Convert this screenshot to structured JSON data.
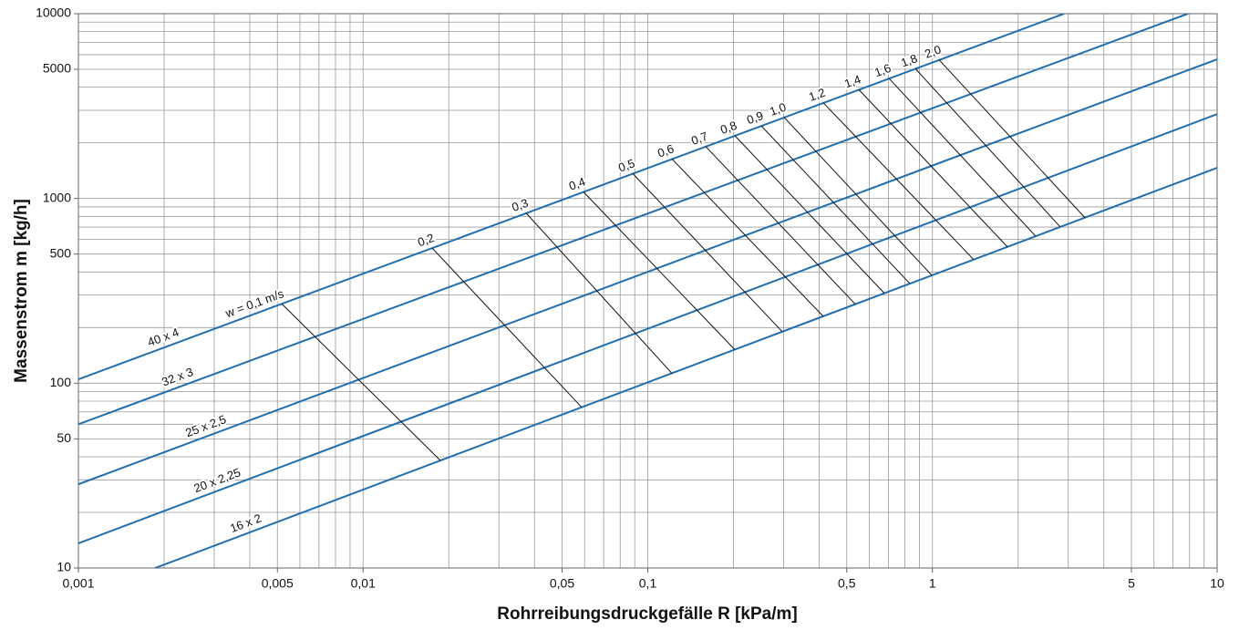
{
  "chart_data": {
    "type": "line",
    "x_label": "Rohrreibungsdruckgefälle R [kPa/m]",
    "y_label": "Massenstrom m [kg/h]",
    "log_x": true,
    "log_y": true,
    "grid": true,
    "xlim": [
      0.001,
      10
    ],
    "ylim": [
      10,
      10000
    ],
    "xticks": [
      {
        "value": 0.001,
        "label": "0,001"
      },
      {
        "value": 0.005,
        "label": "0,005"
      },
      {
        "value": 0.01,
        "label": "0,01"
      },
      {
        "value": 0.05,
        "label": "0,05"
      },
      {
        "value": 0.1,
        "label": "0,1"
      },
      {
        "value": 0.5,
        "label": "0,5"
      },
      1,
      5,
      10
    ],
    "yticks": [
      10,
      50,
      100,
      500,
      1000,
      5000,
      10000
    ],
    "xgrid": [
      0.001,
      0.002,
      0.003,
      0.004,
      0.005,
      0.006,
      0.007,
      0.008,
      0.009,
      0.01,
      0.02,
      0.03,
      0.04,
      0.05,
      0.06,
      0.07,
      0.08,
      0.09,
      0.1,
      0.2,
      0.3,
      0.4,
      0.5,
      0.6,
      0.7,
      0.8,
      0.9,
      1,
      2,
      3,
      4,
      5,
      6,
      7,
      8,
      9,
      10
    ],
    "ygrid": [
      10,
      20,
      30,
      40,
      50,
      60,
      70,
      80,
      90,
      100,
      200,
      300,
      400,
      500,
      600,
      700,
      800,
      900,
      1000,
      2000,
      3000,
      4000,
      5000,
      6000,
      7000,
      8000,
      9000,
      10000
    ],
    "series": [
      {
        "name": "40 x 4",
        "color": "#1f6fb2",
        "x": [
          0.001,
          2.9
        ],
        "values": [
          105,
          10000
        ]
      },
      {
        "name": "32 x 3",
        "color": "#1f6fb2",
        "x": [
          0.001,
          7.9
        ],
        "values": [
          60,
          10000
        ]
      },
      {
        "name": "25 x 2,5",
        "color": "#1f6fb2",
        "x": [
          0.001,
          10
        ],
        "values": [
          28.4,
          5660
        ]
      },
      {
        "name": "20 x 2,25",
        "color": "#1f6fb2",
        "x": [
          0.001,
          10
        ],
        "values": [
          13.6,
          2860
        ]
      },
      {
        "name": "16 x 2",
        "color": "#1f6fb2",
        "x": [
          0.00186,
          10
        ],
        "values": [
          10,
          1465
        ]
      }
    ],
    "velocity_lines": [
      {
        "name": "w = 0,1 m/s",
        "color": "#111111",
        "x": [
          0.00518,
          0.01868
        ],
        "values": [
          269,
          38.2
        ]
      },
      {
        "name": "0,2",
        "color": "#111111",
        "x": [
          0.01748,
          0.0586
        ],
        "values": [
          539,
          74.1
        ]
      },
      {
        "name": "0,3",
        "color": "#111111",
        "x": [
          0.0374,
          0.1216
        ],
        "values": [
          833,
          113
        ]
      },
      {
        "name": "0,4",
        "color": "#111111",
        "x": [
          0.0594,
          0.2022
        ],
        "values": [
          1086,
          152
        ]
      },
      {
        "name": "0,5",
        "color": "#111111",
        "x": [
          0.0886,
          0.2968
        ],
        "values": [
          1364,
          190
        ]
      },
      {
        "name": "0,6",
        "color": "#111111",
        "x": [
          0.1216,
          0.4135
        ],
        "values": [
          1636,
          230
        ]
      },
      {
        "name": "0,7",
        "color": "#111111",
        "x": [
          0.1598,
          0.5354
        ],
        "values": [
          1911,
          268
        ]
      },
      {
        "name": "0,8",
        "color": "#111111",
        "x": [
          0.2022,
          0.6776
        ],
        "values": [
          2188,
          307
        ]
      },
      {
        "name": "0,9",
        "color": "#111111",
        "x": [
          0.2504,
          0.8331
        ],
        "values": [
          2472,
          346
        ]
      },
      {
        "name": "1,0",
        "color": "#111111",
        "x": [
          0.3012,
          0.9945
        ],
        "values": [
          2748,
          384
        ]
      },
      {
        "name": "1,2",
        "color": "#111111",
        "x": [
          0.4135,
          1.396
        ],
        "values": [
          3296,
          467
        ]
      },
      {
        "name": "1,4",
        "color": "#111111",
        "x": [
          0.5512,
          1.834
        ],
        "values": [
          3883,
          547
        ]
      },
      {
        "name": "1,6",
        "color": "#111111",
        "x": [
          0.7035,
          2.305
        ],
        "values": [
          4465,
          625
        ]
      },
      {
        "name": "1,8",
        "color": "#111111",
        "x": [
          0.871,
          2.813
        ],
        "values": [
          5043,
          701
        ]
      },
      {
        "name": "2,0",
        "color": "#111111",
        "x": [
          1.055,
          3.433
        ],
        "values": [
          5630,
          787
        ]
      }
    ]
  }
}
